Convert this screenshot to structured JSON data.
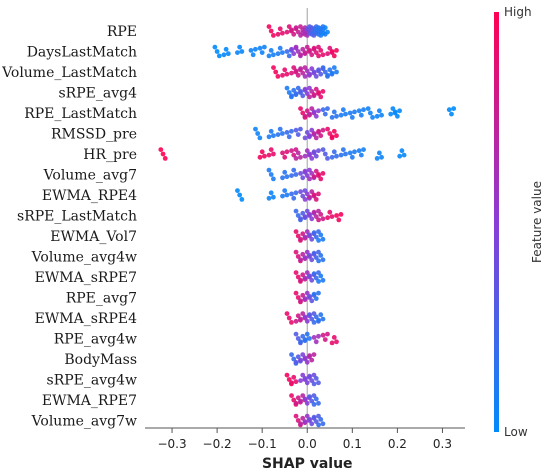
{
  "chart_data": {
    "type": "scatter",
    "subtype": "shap-beeswarm",
    "xlabel": "SHAP value",
    "xlim": [
      -0.36,
      0.35
    ],
    "xticks": [
      -0.3,
      -0.2,
      -0.1,
      0.0,
      0.1,
      0.2,
      0.3
    ],
    "xtick_labels": [
      "−0.3",
      "−0.2",
      "−0.1",
      "0.0",
      "0.1",
      "0.2",
      "0.3"
    ],
    "zero_line": true,
    "colorbar": {
      "title": "Feature value",
      "high_label": "High",
      "low_label": "Low",
      "high_color": "#ff0052",
      "low_color": "#008bfb"
    },
    "features": [
      {
        "name": "RPE",
        "points": [
          [
            -0.08,
            0.95
          ],
          [
            -0.06,
            0.9
          ],
          [
            -0.04,
            0.85
          ],
          [
            -0.03,
            0.8
          ],
          [
            -0.02,
            0.75
          ],
          [
            -0.01,
            0.7
          ],
          [
            -0.005,
            0.65
          ],
          [
            0.0,
            0.6
          ],
          [
            0.005,
            0.35
          ],
          [
            0.01,
            0.3
          ],
          [
            0.015,
            0.25
          ],
          [
            0.02,
            0.2
          ],
          [
            0.025,
            0.15
          ],
          [
            0.03,
            0.12
          ],
          [
            0.035,
            0.1
          ],
          [
            0.04,
            0.05
          ]
        ]
      },
      {
        "name": "DaysLastMatch",
        "points": [
          [
            -0.2,
            0.0
          ],
          [
            -0.18,
            0.02
          ],
          [
            -0.15,
            0.03
          ],
          [
            -0.12,
            0.05
          ],
          [
            -0.1,
            0.05
          ],
          [
            -0.08,
            0.08
          ],
          [
            -0.06,
            0.1
          ],
          [
            -0.04,
            0.2
          ],
          [
            -0.03,
            0.5
          ],
          [
            -0.02,
            0.6
          ],
          [
            -0.01,
            0.7
          ],
          [
            0.0,
            0.75
          ],
          [
            0.01,
            0.8
          ],
          [
            0.02,
            0.85
          ],
          [
            0.03,
            0.9
          ],
          [
            0.05,
            0.85
          ],
          [
            0.06,
            0.95
          ]
        ]
      },
      {
        "name": "Volume_LastMatch",
        "points": [
          [
            -0.07,
            0.95
          ],
          [
            -0.05,
            0.9
          ],
          [
            -0.03,
            0.85
          ],
          [
            -0.02,
            0.8
          ],
          [
            -0.01,
            0.7
          ],
          [
            0.0,
            0.6
          ],
          [
            0.01,
            0.5
          ],
          [
            0.02,
            0.4
          ],
          [
            0.03,
            0.3
          ],
          [
            0.04,
            0.2
          ],
          [
            0.05,
            0.15
          ],
          [
            0.06,
            0.1
          ]
        ]
      },
      {
        "name": "sRPE_avg4",
        "points": [
          [
            -0.04,
            0.1
          ],
          [
            -0.03,
            0.15
          ],
          [
            -0.02,
            0.2
          ],
          [
            -0.01,
            0.3
          ],
          [
            0.0,
            0.5
          ],
          [
            0.01,
            0.7
          ],
          [
            0.02,
            0.8
          ],
          [
            0.03,
            0.9
          ]
        ]
      },
      {
        "name": "RPE_LastMatch",
        "points": [
          [
            -0.01,
            0.9
          ],
          [
            0.0,
            0.8
          ],
          [
            0.01,
            0.7
          ],
          [
            0.02,
            0.5
          ],
          [
            0.04,
            0.2
          ],
          [
            0.06,
            0.15
          ],
          [
            0.08,
            0.1
          ],
          [
            0.1,
            0.1
          ],
          [
            0.12,
            0.08
          ],
          [
            0.14,
            0.05
          ],
          [
            0.16,
            0.05
          ],
          [
            0.19,
            0.02
          ],
          [
            0.2,
            0.02
          ],
          [
            0.32,
            0.0
          ]
        ]
      },
      {
        "name": "RMSSD_pre",
        "points": [
          [
            -0.11,
            0.05
          ],
          [
            -0.08,
            0.1
          ],
          [
            -0.06,
            0.15
          ],
          [
            -0.04,
            0.2
          ],
          [
            -0.02,
            0.3
          ],
          [
            0.0,
            0.4
          ],
          [
            0.01,
            0.5
          ],
          [
            0.02,
            0.7
          ],
          [
            0.03,
            0.8
          ],
          [
            0.05,
            0.9
          ],
          [
            0.06,
            0.95
          ]
        ]
      },
      {
        "name": "HR_pre",
        "points": [
          [
            -0.32,
            1.0
          ],
          [
            -0.1,
            0.95
          ],
          [
            -0.08,
            0.9
          ],
          [
            -0.05,
            0.85
          ],
          [
            -0.03,
            0.8
          ],
          [
            -0.02,
            0.7
          ],
          [
            0.0,
            0.6
          ],
          [
            0.01,
            0.5
          ],
          [
            0.02,
            0.4
          ],
          [
            0.04,
            0.3
          ],
          [
            0.06,
            0.2
          ],
          [
            0.08,
            0.15
          ],
          [
            0.1,
            0.1
          ],
          [
            0.12,
            0.08
          ],
          [
            0.16,
            0.05
          ],
          [
            0.21,
            0.02
          ]
        ]
      },
      {
        "name": "Volume_avg7",
        "points": [
          [
            -0.08,
            0.1
          ],
          [
            -0.05,
            0.15
          ],
          [
            -0.03,
            0.2
          ],
          [
            -0.01,
            0.4
          ],
          [
            0.0,
            0.5
          ],
          [
            0.01,
            0.6
          ],
          [
            0.02,
            0.8
          ],
          [
            0.03,
            0.9
          ]
        ]
      },
      {
        "name": "EWMA_RPE4",
        "points": [
          [
            -0.15,
            0.0
          ],
          [
            -0.08,
            0.05
          ],
          [
            -0.05,
            0.1
          ],
          [
            -0.03,
            0.2
          ],
          [
            -0.01,
            0.4
          ],
          [
            0.0,
            0.5
          ],
          [
            0.01,
            0.7
          ],
          [
            0.02,
            0.85
          ]
        ]
      },
      {
        "name": "sRPE_LastMatch",
        "points": [
          [
            -0.02,
            0.2
          ],
          [
            -0.01,
            0.3
          ],
          [
            0.0,
            0.4
          ],
          [
            0.01,
            0.5
          ],
          [
            0.02,
            0.7
          ],
          [
            0.03,
            0.8
          ],
          [
            0.05,
            0.9
          ],
          [
            0.07,
            0.95
          ]
        ]
      },
      {
        "name": "EWMA_Vol7",
        "points": [
          [
            -0.02,
            0.9
          ],
          [
            -0.01,
            0.8
          ],
          [
            0.0,
            0.6
          ],
          [
            0.01,
            0.4
          ],
          [
            0.02,
            0.2
          ],
          [
            0.03,
            0.1
          ]
        ]
      },
      {
        "name": "Volume_avg4w",
        "points": [
          [
            -0.02,
            0.85
          ],
          [
            -0.01,
            0.7
          ],
          [
            0.0,
            0.55
          ],
          [
            0.01,
            0.4
          ],
          [
            0.02,
            0.25
          ],
          [
            0.03,
            0.15
          ]
        ]
      },
      {
        "name": "EWMA_sRPE7",
        "points": [
          [
            -0.02,
            0.9
          ],
          [
            -0.01,
            0.8
          ],
          [
            0.0,
            0.6
          ],
          [
            0.01,
            0.4
          ],
          [
            0.02,
            0.2
          ],
          [
            0.03,
            0.1
          ]
        ]
      },
      {
        "name": "RPE_avg7",
        "points": [
          [
            -0.02,
            0.9
          ],
          [
            -0.01,
            0.75
          ],
          [
            0.0,
            0.55
          ],
          [
            0.01,
            0.35
          ],
          [
            0.02,
            0.15
          ]
        ]
      },
      {
        "name": "EWMA_sRPE4",
        "points": [
          [
            -0.04,
            0.9
          ],
          [
            -0.02,
            0.8
          ],
          [
            -0.01,
            0.7
          ],
          [
            0.0,
            0.5
          ],
          [
            0.01,
            0.3
          ],
          [
            0.02,
            0.2
          ],
          [
            0.03,
            0.15
          ]
        ]
      },
      {
        "name": "RPE_avg4w",
        "points": [
          [
            -0.02,
            0.3
          ],
          [
            -0.01,
            0.2
          ],
          [
            0.0,
            0.15
          ],
          [
            0.02,
            0.6
          ],
          [
            0.04,
            0.8
          ],
          [
            0.06,
            0.9
          ]
        ]
      },
      {
        "name": "BodyMass",
        "points": [
          [
            -0.03,
            0.2
          ],
          [
            -0.02,
            0.3
          ],
          [
            -0.01,
            0.45
          ],
          [
            0.0,
            0.55
          ],
          [
            0.01,
            0.7
          ]
        ]
      },
      {
        "name": "sRPE_avg4w",
        "points": [
          [
            -0.04,
            0.95
          ],
          [
            -0.03,
            0.9
          ],
          [
            -0.01,
            0.5
          ],
          [
            0.0,
            0.45
          ],
          [
            0.01,
            0.4
          ],
          [
            0.02,
            0.3
          ]
        ]
      },
      {
        "name": "EWMA_RPE7",
        "points": [
          [
            -0.03,
            0.9
          ],
          [
            -0.02,
            0.8
          ],
          [
            -0.01,
            0.7
          ],
          [
            0.0,
            0.5
          ],
          [
            0.01,
            0.3
          ],
          [
            0.02,
            0.2
          ]
        ]
      },
      {
        "name": "Volume_avg7w",
        "points": [
          [
            -0.02,
            0.85
          ],
          [
            -0.01,
            0.7
          ],
          [
            0.0,
            0.55
          ],
          [
            0.01,
            0.4
          ],
          [
            0.02,
            0.3
          ],
          [
            0.03,
            0.2
          ]
        ]
      }
    ]
  }
}
